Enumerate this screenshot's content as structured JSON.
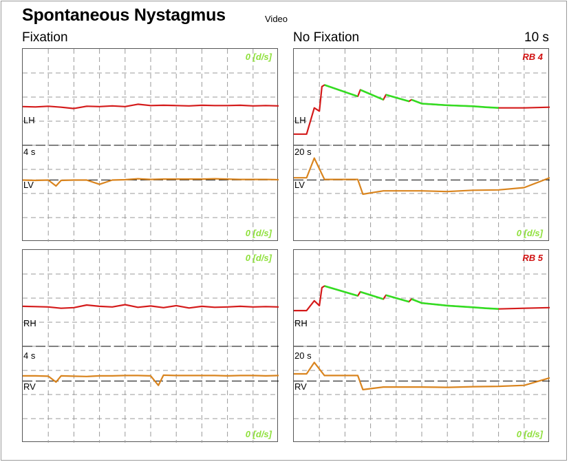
{
  "header": {
    "title": "Spontaneous Nystagmus",
    "subtitle": "Video",
    "fixation_label": "Fixation",
    "no_fixation_label": "No Fixation",
    "duration_label": "10 s"
  },
  "panels": {
    "top_left": {
      "top_right": "0 [d/s]",
      "bottom_right": "0 [d/s]",
      "label_h": "LH",
      "label_scale": "4 s",
      "label_v": "LV"
    },
    "top_right": {
      "top_right": "RB 4",
      "bottom_right": "0 [d/s]",
      "label_h": "LH",
      "label_scale": "20 s",
      "label_v": "LV"
    },
    "bottom_left": {
      "top_right": "0 [d/s]",
      "bottom_right": "0 [d/s]",
      "label_h": "RH",
      "label_scale": "4 s",
      "label_v": "RV"
    },
    "bottom_right": {
      "top_right": "RB 5",
      "bottom_right": "0 [d/s]",
      "label_h": "RH",
      "label_scale": "20 s",
      "label_v": "RV"
    }
  },
  "colors": {
    "horizontal_trace": "#d41a1a",
    "horizontal_slow_phase": "#33dd22",
    "vertical_trace": "#d9841e",
    "artifact": "#808080",
    "grid": "#999999",
    "baseline": "#000000"
  },
  "chart_data": [
    {
      "type": "line",
      "panel": "top_left",
      "series": [
        {
          "name": "LH",
          "x": [
            0,
            0.5,
            1,
            1.5,
            2,
            2.5,
            3,
            3.5,
            4,
            4.5,
            5,
            5.5,
            6,
            6.5,
            7,
            7.5,
            8,
            8.5,
            9,
            9.5,
            10
          ],
          "y": [
            0.24,
            0.23,
            0.25,
            0.22,
            0.18,
            0.25,
            0.24,
            0.26,
            0.24,
            0.31,
            0.27,
            0.28,
            0.27,
            0.26,
            0.28,
            0.27,
            0.27,
            0.28,
            0.26,
            0.27,
            0.26
          ]
        },
        {
          "name": "LV",
          "x": [
            0,
            0.5,
            1,
            1.3,
            1.5,
            2,
            2.5,
            3,
            3.5,
            4,
            4.5,
            5,
            5.5,
            6,
            6.5,
            7,
            7.5,
            8,
            8.5,
            9,
            9.5,
            10
          ],
          "y": [
            -0.12,
            -0.13,
            -0.12,
            -0.3,
            -0.13,
            -0.12,
            -0.12,
            -0.25,
            -0.12,
            -0.11,
            -0.08,
            -0.1,
            -0.09,
            -0.09,
            -0.09,
            -0.09,
            -0.08,
            -0.09,
            -0.1,
            -0.1,
            -0.1,
            -0.11
          ]
        }
      ]
    },
    {
      "type": "line",
      "panel": "top_right",
      "series": [
        {
          "name": "LH",
          "x": [
            0,
            0.5,
            0.8,
            1.0,
            1.1,
            1.2,
            2.5,
            2.6,
            3.5,
            3.6,
            4.5,
            4.6,
            5,
            6,
            7,
            7.5,
            8,
            9,
            10
          ],
          "y": [
            -0.6,
            -0.6,
            0.2,
            0.1,
            0.85,
            0.9,
            0.55,
            0.75,
            0.45,
            0.6,
            0.4,
            0.45,
            0.33,
            0.28,
            0.25,
            0.22,
            0.2,
            0.2,
            0.22
          ]
        },
        {
          "name": "LV",
          "x": [
            0,
            0.5,
            0.8,
            1.2,
            2.5,
            2.7,
            3.5,
            5,
            6,
            7,
            8,
            9,
            10
          ],
          "y": [
            -0.05,
            -0.05,
            0.55,
            -0.1,
            -0.1,
            -0.55,
            -0.45,
            -0.45,
            -0.47,
            -0.43,
            -0.42,
            -0.35,
            -0.05
          ]
        }
      ]
    },
    {
      "type": "line",
      "panel": "bottom_left",
      "series": [
        {
          "name": "RH",
          "x": [
            0,
            0.5,
            1,
            1.5,
            2,
            2.5,
            3,
            3.5,
            4,
            4.5,
            5,
            5.5,
            6,
            6.5,
            7,
            7.5,
            8,
            8.5,
            9,
            9.5,
            10
          ],
          "y": [
            0.28,
            0.27,
            0.26,
            0.22,
            0.24,
            0.32,
            0.28,
            0.26,
            0.33,
            0.25,
            0.29,
            0.24,
            0.3,
            0.23,
            0.28,
            0.25,
            0.26,
            0.28,
            0.26,
            0.27,
            0.26
          ]
        },
        {
          "name": "RV",
          "x": [
            0,
            0.5,
            1,
            1.3,
            1.5,
            2,
            2.5,
            3,
            3.5,
            4,
            4.5,
            5,
            5.3,
            5.5,
            6,
            6.5,
            7,
            7.5,
            8,
            8.5,
            9,
            9.5,
            10
          ],
          "y": [
            0.04,
            0.04,
            0.03,
            -0.15,
            0.04,
            0.03,
            0.02,
            0.04,
            0.04,
            0.05,
            0.05,
            0.04,
            -0.25,
            0.06,
            0.05,
            0.05,
            0.05,
            0.05,
            0.04,
            0.05,
            0.05,
            0.04,
            0.05
          ]
        }
      ]
    },
    {
      "type": "line",
      "panel": "bottom_right",
      "series": [
        {
          "name": "RH",
          "x": [
            0,
            0.5,
            0.8,
            1.0,
            1.1,
            1.2,
            2.5,
            2.6,
            3.5,
            3.6,
            4.5,
            4.6,
            5,
            6,
            7,
            7.5,
            8,
            9,
            10
          ],
          "y": [
            0.15,
            0.15,
            0.45,
            0.3,
            0.85,
            0.9,
            0.6,
            0.72,
            0.5,
            0.62,
            0.42,
            0.5,
            0.38,
            0.3,
            0.25,
            0.22,
            0.2,
            0.22,
            0.24
          ]
        },
        {
          "name": "RV",
          "x": [
            0,
            0.5,
            0.8,
            1.2,
            2.5,
            2.7,
            3.5,
            5,
            6,
            7,
            8,
            9,
            10
          ],
          "y": [
            0.1,
            0.1,
            0.45,
            0.05,
            0.05,
            -0.38,
            -0.3,
            -0.3,
            -0.31,
            -0.29,
            -0.28,
            -0.25,
            -0.02
          ]
        }
      ]
    }
  ]
}
